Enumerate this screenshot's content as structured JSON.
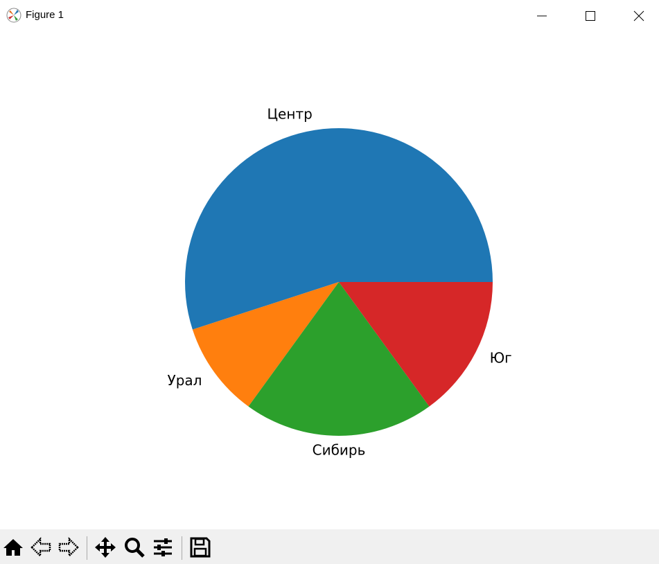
{
  "window": {
    "title": "Figure 1"
  },
  "chart_data": {
    "type": "pie",
    "categories": [
      "Центр",
      "Урал",
      "Сибирь",
      "Юг"
    ],
    "values": [
      55,
      10,
      20,
      15
    ],
    "colors": [
      "#1f77b4",
      "#ff7f0e",
      "#2ca02c",
      "#d62728"
    ],
    "start_angle": 0,
    "direction": "counterclockwise"
  },
  "toolbar": {
    "icons": [
      "home-icon",
      "back-icon",
      "forward-icon",
      "pan-icon",
      "zoom-icon",
      "configure-subplots-icon",
      "save-icon"
    ]
  }
}
